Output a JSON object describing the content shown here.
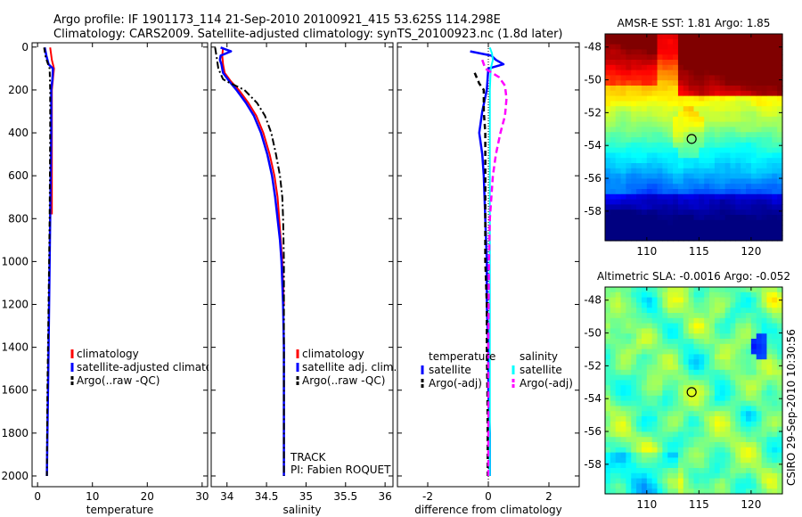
{
  "header": {
    "title_line1": "Argo profile: IF 1901173_114 21-Sep-2010 20100921_415 53.625S 114.298E",
    "title_line2": "Climatology: CARS2009. Satellite-adjusted climatology: synTS_20100923.nc (1.8d later)"
  },
  "side_label": "CSIRO 29-Sep-2010 10:30:56",
  "colors": {
    "red": "#ff0000",
    "blue": "#0000ff",
    "black": "#000000",
    "cyan": "#00ffff",
    "magenta": "#ff00ff"
  },
  "chart_data": [
    {
      "id": "temperature",
      "type": "line",
      "xlabel": "temperature",
      "xlim": [
        -1,
        31
      ],
      "xticks": [
        0,
        10,
        20,
        30
      ],
      "ylim": [
        2050,
        -20
      ],
      "yticks": [
        0,
        200,
        400,
        600,
        800,
        1000,
        1200,
        1400,
        1600,
        1800,
        2000
      ],
      "series": [
        {
          "name": "climatology",
          "color": "#ff0000",
          "dash": "",
          "width": 2,
          "y": [
            2,
            60,
            100,
            200,
            400,
            780
          ],
          "x": [
            2.3,
            2.6,
            3.0,
            2.6,
            2.6,
            2.6
          ]
        },
        {
          "name": "satellite-adjusted climatology",
          "color": "#0000ff",
          "dash": "",
          "width": 2.5,
          "y": [
            2,
            40,
            80,
            100,
            150,
            200,
            400,
            600,
            800,
            1000,
            1200,
            1400,
            1600,
            1800,
            2000
          ],
          "x": [
            1.3,
            1.6,
            2.0,
            2.8,
            2.7,
            2.5,
            2.5,
            2.4,
            2.3,
            2.2,
            2.1,
            2.0,
            1.9,
            1.8,
            1.7
          ]
        },
        {
          "name": "Argo(..raw -QC)",
          "color": "#000000",
          "dash": "6,3,2,3",
          "width": 2,
          "y": [
            2,
            50,
            100,
            200,
            400,
            800,
            1200,
            1600,
            2000
          ],
          "x": [
            1.2,
            1.5,
            2.2,
            2.3,
            2.3,
            2.2,
            2.0,
            1.8,
            1.7
          ]
        }
      ],
      "legend": [
        {
          "label": "climatology",
          "color": "#ff0000",
          "dash": ""
        },
        {
          "label": "satellite-adjusted climatology",
          "color": "#0000ff",
          "dash": ""
        },
        {
          "label": "Argo(..raw -QC)",
          "color": "#000000",
          "dash": "4,2"
        }
      ]
    },
    {
      "id": "salinity",
      "type": "line",
      "xlabel": "salinity",
      "xlim": [
        33.8,
        36.1
      ],
      "xticks": [
        34,
        34.5,
        35,
        35.5,
        36
      ],
      "ylim": [
        2050,
        -20
      ],
      "yticks": [
        0,
        200,
        400,
        600,
        800,
        1000,
        1200,
        1400,
        1600,
        1800,
        2000
      ],
      "series": [
        {
          "name": "climatology",
          "color": "#ff0000",
          "dash": "",
          "width": 2,
          "y": [
            2,
            40,
            80,
            120,
            160,
            200,
            260,
            320,
            400,
            500,
            600,
            700,
            800,
            900,
            1000,
            1200
          ],
          "x": [
            33.95,
            33.94,
            33.95,
            33.97,
            34.05,
            34.15,
            34.27,
            34.37,
            34.46,
            34.54,
            34.6,
            34.64,
            34.66,
            34.68,
            34.7,
            34.72
          ]
        },
        {
          "name": "satellite adj. clim.",
          "color": "#0000ff",
          "dash": "",
          "width": 2.5,
          "y": [
            2,
            20,
            40,
            60,
            80,
            120,
            160,
            200,
            260,
            320,
            400,
            500,
            600,
            700,
            800,
            900,
            1000,
            1200,
            1400,
            1600,
            1800,
            2000
          ],
          "x": [
            33.92,
            34.05,
            33.92,
            33.91,
            33.93,
            33.95,
            34.03,
            34.12,
            34.24,
            34.34,
            34.43,
            34.51,
            34.57,
            34.61,
            34.64,
            34.67,
            34.69,
            34.71,
            34.72,
            34.72,
            34.72,
            34.72
          ]
        },
        {
          "name": "Argo(..raw -QC)",
          "color": "#000000",
          "dash": "8,3,2,3",
          "width": 2,
          "y": [
            2,
            50,
            100,
            150,
            170,
            200,
            260,
            320,
            400,
            500,
            600,
            700,
            800,
            1000,
            1200,
            1400,
            1600,
            1800,
            2000
          ],
          "x": [
            33.85,
            33.87,
            33.89,
            33.95,
            34.05,
            34.22,
            34.38,
            34.48,
            34.56,
            34.62,
            34.67,
            34.7,
            34.71,
            34.72,
            34.72,
            34.72,
            34.72,
            34.72,
            34.72
          ]
        }
      ],
      "legend": [
        {
          "label": "climatology",
          "color": "#ff0000",
          "dash": ""
        },
        {
          "label": "satellite adj. clim.",
          "color": "#0000ff",
          "dash": ""
        },
        {
          "label": "Argo(..raw -QC)",
          "color": "#000000",
          "dash": "4,2"
        }
      ],
      "annotations": [
        "TRACK",
        "PI: Fabien ROQUET"
      ]
    },
    {
      "id": "difference",
      "type": "line",
      "xlabel": "difference from climatology",
      "xlim": [
        -3,
        3
      ],
      "xticks": [
        -2,
        0,
        2
      ],
      "ylim": [
        2050,
        -20
      ],
      "yticks": [
        0,
        200,
        400,
        600,
        800,
        1000,
        1200,
        1400,
        1600,
        1800,
        2000
      ],
      "series": [
        {
          "name": "temperature satellite",
          "color": "#0000ff",
          "dash": "",
          "width": 2.5,
          "y": [
            20,
            40,
            60,
            80,
            100,
            200,
            300,
            400,
            500,
            600,
            800,
            1000,
            1200,
            1400,
            1600,
            1800,
            2000
          ],
          "x": [
            -0.6,
            0.1,
            0.25,
            0.5,
            0.0,
            -0.05,
            -0.2,
            -0.3,
            -0.2,
            -0.15,
            -0.1,
            -0.05,
            -0.05,
            0.0,
            0.0,
            0.05,
            0.05
          ]
        },
        {
          "name": "temperature Argo(-adj)",
          "color": "#000000",
          "dash": "6,4",
          "width": 2.5,
          "y": [
            120,
            170,
            200,
            300,
            400,
            600,
            800,
            1000,
            1200,
            1400,
            1600,
            1800,
            2000
          ],
          "x": [
            -0.45,
            -0.3,
            -0.15,
            -0.15,
            -0.1,
            -0.1,
            -0.1,
            -0.1,
            -0.05,
            -0.05,
            -0.03,
            -0.02,
            -0.02
          ]
        },
        {
          "name": "salinity satellite",
          "color": "#00ffff",
          "dash": "",
          "width": 2,
          "y": [
            2,
            30,
            60,
            100,
            200,
            400,
            600,
            800,
            1000,
            1200,
            1400,
            1600,
            1800,
            2000
          ],
          "x": [
            0.05,
            0.12,
            0.15,
            0.08,
            0.05,
            0.05,
            0.05,
            0.05,
            0.05,
            0.05,
            0.05,
            0.05,
            0.05,
            0.05
          ]
        },
        {
          "name": "salinity Argo(-adj)",
          "color": "#ff00ff",
          "dash": "7,4",
          "width": 2.5,
          "y": [
            60,
            100,
            140,
            180,
            240,
            320,
            400,
            500,
            600,
            700,
            800,
            1000,
            1400,
            2000
          ],
          "x": [
            -0.2,
            -0.1,
            0.35,
            0.55,
            0.6,
            0.55,
            0.4,
            0.25,
            0.15,
            0.1,
            0.05,
            0.02,
            0.0,
            0.0
          ]
        }
      ],
      "legend_temperature_title": "temperature",
      "legend_salinity_title": "salinity",
      "legend": [
        {
          "label": "satellite",
          "color": "#0000ff",
          "dash": ""
        },
        {
          "label": "Argo(-adj)",
          "color": "#000000",
          "dash": "4,2"
        },
        {
          "label": "satellite",
          "color": "#00ffff",
          "dash": ""
        },
        {
          "label": "Argo(-adj)",
          "color": "#ff00ff",
          "dash": "4,2"
        }
      ]
    },
    {
      "id": "sst_map",
      "type": "heatmap",
      "title": "AMSR-E SST: 1.81 Argo: 1.85",
      "xlim": [
        106,
        123
      ],
      "ylim": [
        -59.8,
        -47.2
      ],
      "xticks": [
        110,
        115,
        120
      ],
      "yticks": [
        -48,
        -50,
        -52,
        -54,
        -56,
        -58
      ],
      "marker": {
        "lon": 114.3,
        "lat": -53.6
      }
    },
    {
      "id": "sla_map",
      "type": "heatmap",
      "title": "Altimetric SLA: -0.0016 Argo: -0.052",
      "xlim": [
        106,
        123
      ],
      "ylim": [
        -59.8,
        -47.2
      ],
      "xticks": [
        110,
        115,
        120
      ],
      "yticks": [
        -48,
        -50,
        -52,
        -54,
        -56,
        -58
      ],
      "marker": {
        "lon": 114.3,
        "lat": -53.6
      }
    }
  ]
}
